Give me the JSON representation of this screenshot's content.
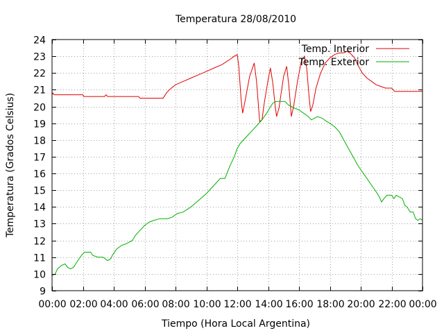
{
  "chart_data": {
    "type": "line",
    "title": "Temperatura 28/08/2010",
    "xlabel": "Tiempo (Hora Local Argentina)",
    "ylabel": "Temperatura (Grados Celsius)",
    "xlim": [
      0,
      24
    ],
    "ylim": [
      9,
      24
    ],
    "x_ticks": [
      {
        "value": 0,
        "label": "00:00"
      },
      {
        "value": 2,
        "label": "02:00"
      },
      {
        "value": 4,
        "label": "04:00"
      },
      {
        "value": 6,
        "label": "06:00"
      },
      {
        "value": 8,
        "label": "08:00"
      },
      {
        "value": 10,
        "label": "10:00"
      },
      {
        "value": 12,
        "label": "12:00"
      },
      {
        "value": 14,
        "label": "14:00"
      },
      {
        "value": 16,
        "label": "16:00"
      },
      {
        "value": 18,
        "label": "18:00"
      },
      {
        "value": 20,
        "label": "20:00"
      },
      {
        "value": 22,
        "label": "22:00"
      },
      {
        "value": 24,
        "label": "00:00"
      }
    ],
    "y_ticks": [
      9,
      10,
      11,
      12,
      13,
      14,
      15,
      16,
      17,
      18,
      19,
      20,
      21,
      22,
      23,
      24
    ],
    "grid": true,
    "legend_position": "top-right",
    "series": [
      {
        "name": "Temp. Interior",
        "color": "#e00000",
        "points": [
          [
            0.0,
            20.7
          ],
          [
            0.05,
            20.8
          ],
          [
            0.15,
            20.7
          ],
          [
            2.0,
            20.7
          ],
          [
            2.05,
            20.6
          ],
          [
            3.4,
            20.6
          ],
          [
            3.5,
            20.7
          ],
          [
            3.6,
            20.6
          ],
          [
            4.9,
            20.6
          ],
          [
            5.0,
            20.6
          ],
          [
            5.6,
            20.6
          ],
          [
            5.7,
            20.5
          ],
          [
            7.2,
            20.5
          ],
          [
            7.4,
            20.8
          ],
          [
            7.6,
            21.0
          ],
          [
            8.0,
            21.3
          ],
          [
            8.5,
            21.5
          ],
          [
            9.0,
            21.7
          ],
          [
            9.5,
            21.9
          ],
          [
            10.0,
            22.1
          ],
          [
            10.5,
            22.3
          ],
          [
            11.0,
            22.5
          ],
          [
            11.5,
            22.8
          ],
          [
            11.8,
            23.0
          ],
          [
            12.0,
            23.1
          ],
          [
            12.1,
            22.4
          ],
          [
            12.25,
            20.4
          ],
          [
            12.35,
            19.6
          ],
          [
            12.5,
            20.3
          ],
          [
            12.8,
            21.8
          ],
          [
            13.1,
            22.6
          ],
          [
            13.25,
            21.5
          ],
          [
            13.45,
            19.1
          ],
          [
            13.6,
            19.2
          ],
          [
            13.75,
            20.2
          ],
          [
            14.0,
            21.6
          ],
          [
            14.15,
            22.3
          ],
          [
            14.3,
            21.4
          ],
          [
            14.45,
            20.1
          ],
          [
            14.55,
            19.4
          ],
          [
            14.7,
            19.9
          ],
          [
            15.0,
            21.8
          ],
          [
            15.2,
            22.4
          ],
          [
            15.35,
            21.2
          ],
          [
            15.5,
            19.4
          ],
          [
            15.65,
            20.0
          ],
          [
            15.9,
            21.5
          ],
          [
            16.15,
            22.7
          ],
          [
            16.35,
            23.0
          ],
          [
            16.5,
            22.3
          ],
          [
            16.65,
            20.6
          ],
          [
            16.75,
            19.7
          ],
          [
            16.9,
            20.1
          ],
          [
            17.1,
            21.1
          ],
          [
            17.4,
            22.0
          ],
          [
            17.7,
            22.6
          ],
          [
            18.0,
            22.9
          ],
          [
            18.3,
            23.1
          ],
          [
            18.6,
            23.2
          ],
          [
            18.9,
            23.2
          ],
          [
            19.1,
            23.3
          ],
          [
            19.3,
            23.2
          ],
          [
            19.6,
            22.9
          ],
          [
            19.8,
            22.5
          ],
          [
            20.1,
            22.0
          ],
          [
            20.4,
            21.7
          ],
          [
            20.7,
            21.5
          ],
          [
            21.0,
            21.3
          ],
          [
            21.3,
            21.2
          ],
          [
            21.6,
            21.1
          ],
          [
            22.0,
            21.1
          ],
          [
            22.1,
            21.0
          ],
          [
            22.2,
            20.9
          ],
          [
            24.0,
            20.9
          ]
        ]
      },
      {
        "name": "Temp. Exterior",
        "color": "#00b000",
        "points": [
          [
            0.0,
            9.9
          ],
          [
            0.2,
            10.0
          ],
          [
            0.35,
            10.3
          ],
          [
            0.6,
            10.5
          ],
          [
            0.85,
            10.6
          ],
          [
            1.0,
            10.4
          ],
          [
            1.2,
            10.3
          ],
          [
            1.4,
            10.4
          ],
          [
            1.6,
            10.7
          ],
          [
            1.9,
            11.1
          ],
          [
            2.1,
            11.3
          ],
          [
            2.5,
            11.3
          ],
          [
            2.65,
            11.1
          ],
          [
            3.0,
            11.0
          ],
          [
            3.3,
            11.0
          ],
          [
            3.45,
            10.9
          ],
          [
            3.6,
            10.8
          ],
          [
            3.8,
            10.9
          ],
          [
            3.9,
            11.1
          ],
          [
            4.2,
            11.5
          ],
          [
            4.5,
            11.7
          ],
          [
            4.8,
            11.8
          ],
          [
            5.2,
            12.0
          ],
          [
            5.4,
            12.3
          ],
          [
            5.7,
            12.6
          ],
          [
            6.0,
            12.9
          ],
          [
            6.3,
            13.1
          ],
          [
            6.6,
            13.2
          ],
          [
            7.0,
            13.3
          ],
          [
            7.5,
            13.3
          ],
          [
            7.8,
            13.4
          ],
          [
            8.1,
            13.6
          ],
          [
            8.5,
            13.7
          ],
          [
            9.0,
            14.0
          ],
          [
            9.5,
            14.4
          ],
          [
            10.0,
            14.8
          ],
          [
            10.5,
            15.3
          ],
          [
            10.9,
            15.7
          ],
          [
            11.2,
            15.7
          ],
          [
            11.5,
            16.4
          ],
          [
            11.8,
            17.0
          ],
          [
            12.0,
            17.5
          ],
          [
            12.2,
            17.8
          ],
          [
            12.5,
            18.1
          ],
          [
            12.7,
            18.3
          ],
          [
            13.0,
            18.6
          ],
          [
            13.3,
            18.9
          ],
          [
            13.6,
            19.2
          ],
          [
            13.9,
            19.6
          ],
          [
            14.1,
            19.9
          ],
          [
            14.3,
            20.2
          ],
          [
            14.5,
            20.3
          ],
          [
            14.8,
            20.3
          ],
          [
            15.1,
            20.3
          ],
          [
            15.3,
            20.1
          ],
          [
            15.5,
            20.0
          ],
          [
            15.7,
            19.9
          ],
          [
            16.0,
            19.8
          ],
          [
            16.3,
            19.6
          ],
          [
            16.6,
            19.4
          ],
          [
            16.8,
            19.2
          ],
          [
            17.0,
            19.3
          ],
          [
            17.2,
            19.4
          ],
          [
            17.5,
            19.3
          ],
          [
            17.8,
            19.1
          ],
          [
            18.0,
            19.0
          ],
          [
            18.3,
            18.8
          ],
          [
            18.6,
            18.5
          ],
          [
            18.9,
            18.0
          ],
          [
            19.2,
            17.5
          ],
          [
            19.5,
            17.0
          ],
          [
            19.8,
            16.5
          ],
          [
            20.1,
            16.1
          ],
          [
            20.4,
            15.7
          ],
          [
            20.7,
            15.3
          ],
          [
            21.0,
            14.9
          ],
          [
            21.2,
            14.6
          ],
          [
            21.35,
            14.3
          ],
          [
            21.5,
            14.5
          ],
          [
            21.7,
            14.7
          ],
          [
            22.0,
            14.7
          ],
          [
            22.15,
            14.5
          ],
          [
            22.3,
            14.7
          ],
          [
            22.5,
            14.6
          ],
          [
            22.7,
            14.5
          ],
          [
            22.85,
            14.1
          ],
          [
            23.0,
            14.0
          ],
          [
            23.2,
            13.7
          ],
          [
            23.4,
            13.7
          ],
          [
            23.55,
            13.3
          ],
          [
            23.7,
            13.2
          ],
          [
            23.85,
            13.3
          ],
          [
            24.0,
            13.2
          ]
        ]
      }
    ]
  }
}
